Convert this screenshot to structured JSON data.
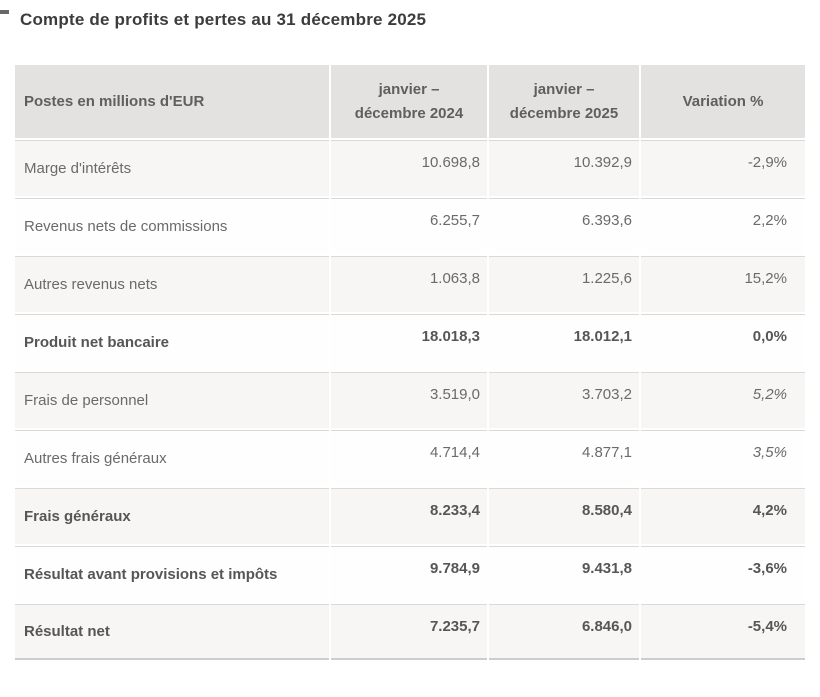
{
  "page": {
    "title": "Compte de profits et pertes au 31 décembre 2025"
  },
  "theme": {
    "page-bg": "#ffffff",
    "title-color": "#3c3c3b",
    "header-bg": "#e4e2e1",
    "header-text": "#605f5d",
    "row-gray": "#f7f6f5",
    "row-white": "#fefefe",
    "text-regular": "#6b6a68",
    "text-bold": "#575655",
    "separator": "#dbd9d8",
    "bottom-line": "#cfcdcc"
  },
  "chart_data": {
    "type": "table",
    "title": "Compte de profits et pertes au 31 décembre 2025",
    "columns": [
      "Postes en millions d'EUR",
      "janvier – décembre 2024",
      "janvier – décembre 2025",
      "Variation %"
    ],
    "rows": [
      {
        "label": "Marge d'intérêts",
        "y2024": "10.698,8",
        "y2025": "10.392,9",
        "variation": "-2,9%",
        "bold": false,
        "variation_italic": false
      },
      {
        "label": "Revenus nets de commissions",
        "y2024": "6.255,7",
        "y2025": "6.393,6",
        "variation": "2,2%",
        "bold": false,
        "variation_italic": false
      },
      {
        "label": "Autres revenus nets",
        "y2024": "1.063,8",
        "y2025": "1.225,6",
        "variation": "15,2%",
        "bold": false,
        "variation_italic": false
      },
      {
        "label": "Produit net bancaire",
        "y2024": "18.018,3",
        "y2025": "18.012,1",
        "variation": "0,0%",
        "bold": true,
        "variation_italic": false
      },
      {
        "label": "Frais de personnel",
        "y2024": "3.519,0",
        "y2025": "3.703,2",
        "variation": "5,2%",
        "bold": false,
        "variation_italic": true
      },
      {
        "label": "Autres frais généraux",
        "y2024": "4.714,4",
        "y2025": "4.877,1",
        "variation": "3,5%",
        "bold": false,
        "variation_italic": true
      },
      {
        "label": "Frais généraux",
        "y2024": "8.233,4",
        "y2025": "8.580,4",
        "variation": "4,2%",
        "bold": true,
        "variation_italic": false
      },
      {
        "label": "Résultat avant provisions et impôts",
        "y2024": "9.784,9",
        "y2025": "9.431,8",
        "variation": "-3,6%",
        "bold": true,
        "variation_italic": false
      },
      {
        "label": "Résultat net",
        "y2024": "7.235,7",
        "y2025": "6.846,0",
        "variation": "-5,4%",
        "bold": true,
        "variation_italic": false
      }
    ]
  }
}
